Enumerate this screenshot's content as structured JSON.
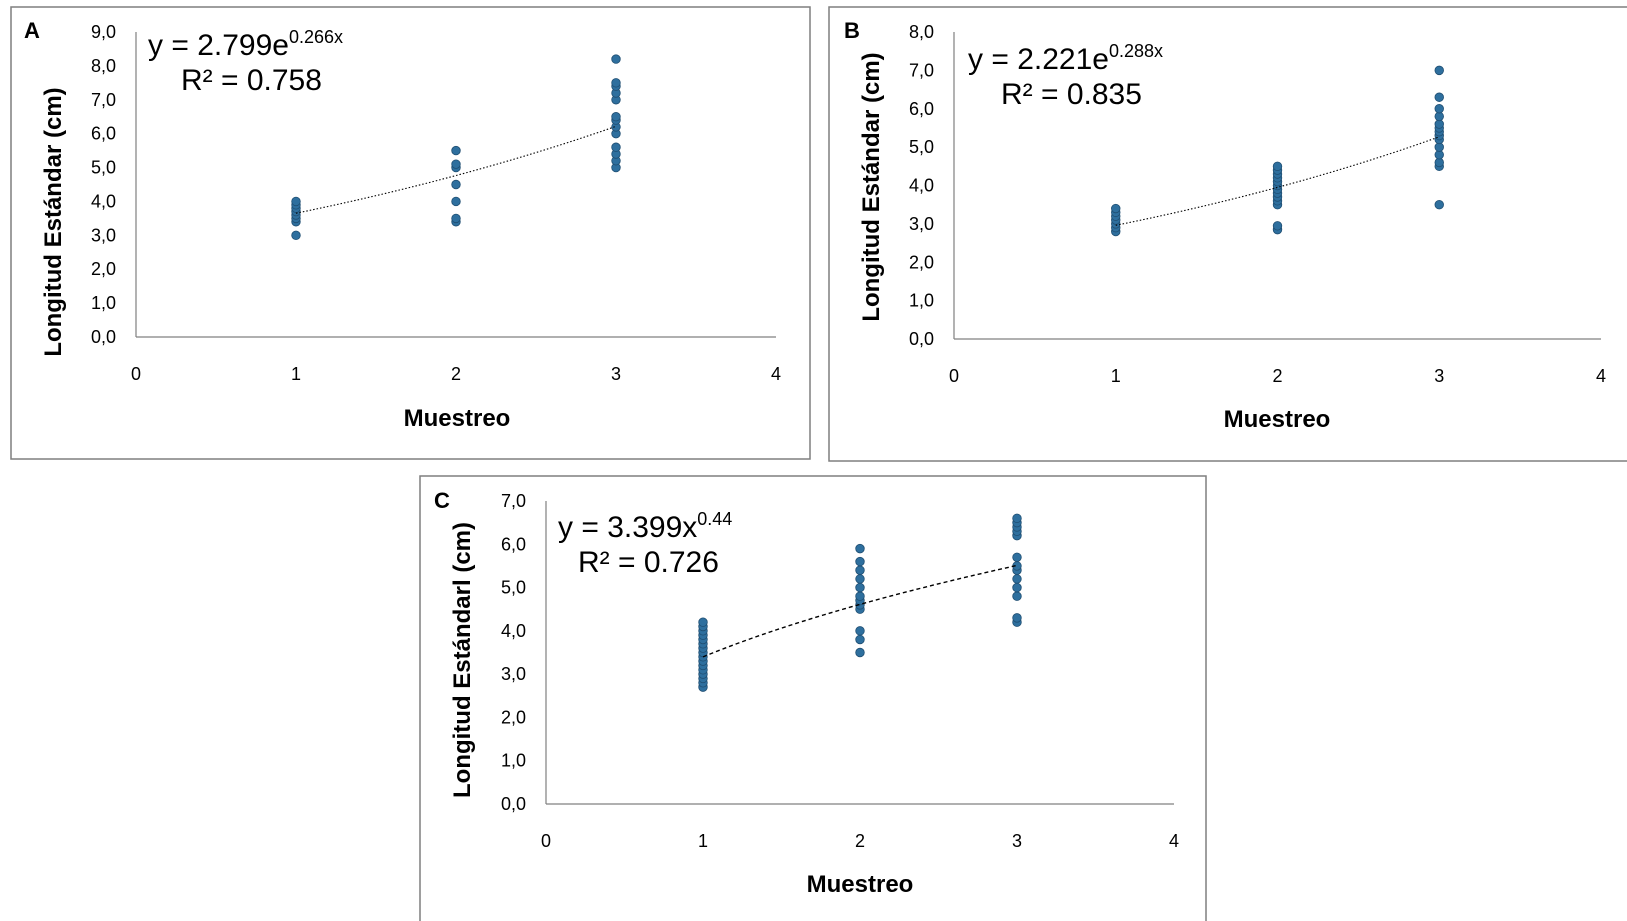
{
  "colors": {
    "marker": "#2e6f9e",
    "marker_edge": "#1f4e72",
    "trend": "#000000",
    "frame": "#7f7f7f",
    "axis": "#808080"
  },
  "chart_data": [
    {
      "type": "scatter",
      "panel": "A",
      "xlabel": "Muestreo",
      "ylabel": "Longitud Estándar (cm)",
      "xlim": [
        0,
        4
      ],
      "ylim": [
        0,
        9
      ],
      "x_ticks": [
        "0",
        "1",
        "2",
        "3",
        "4"
      ],
      "y_ticks": [
        "0,0",
        "1,0",
        "2,0",
        "3,0",
        "4,0",
        "5,0",
        "6,0",
        "7,0",
        "8,0",
        "9,0"
      ],
      "grid": false,
      "series": [
        {
          "points": [
            [
              1,
              3.0
            ],
            [
              1,
              3.4
            ],
            [
              1,
              3.5
            ],
            [
              1,
              3.6
            ],
            [
              1,
              3.7
            ],
            [
              1,
              3.8
            ],
            [
              1,
              3.9
            ],
            [
              1,
              4.0
            ],
            [
              2,
              3.4
            ],
            [
              2,
              3.5
            ],
            [
              2,
              4.0
            ],
            [
              2,
              4.5
            ],
            [
              2,
              5.0
            ],
            [
              2,
              5.1
            ],
            [
              2,
              5.5
            ],
            [
              3,
              5.0
            ],
            [
              3,
              5.2
            ],
            [
              3,
              5.4
            ],
            [
              3,
              5.6
            ],
            [
              3,
              6.0
            ],
            [
              3,
              6.2
            ],
            [
              3,
              6.4
            ],
            [
              3,
              6.5
            ],
            [
              3,
              7.0
            ],
            [
              3,
              7.2
            ],
            [
              3,
              7.4
            ],
            [
              3,
              7.5
            ],
            [
              3,
              8.2
            ]
          ]
        }
      ],
      "trendline": {
        "kind": "exponential",
        "a": 2.799,
        "b": 0.266,
        "x_range": [
          1,
          3
        ]
      },
      "equation": {
        "prefix": "y = 2.799e",
        "exponent": "0.266x",
        "r2": "R² = 0.758"
      }
    },
    {
      "type": "scatter",
      "panel": "B",
      "xlabel": "Muestreo",
      "ylabel": "Longitud Estándar (cm)",
      "xlim": [
        0,
        4
      ],
      "ylim": [
        0,
        8
      ],
      "x_ticks": [
        "0",
        "1",
        "2",
        "3",
        "4"
      ],
      "y_ticks": [
        "0,0",
        "1,0",
        "2,0",
        "3,0",
        "4,0",
        "5,0",
        "6,0",
        "7,0",
        "8,0"
      ],
      "grid": false,
      "series": [
        {
          "points": [
            [
              1,
              2.8
            ],
            [
              1,
              2.9
            ],
            [
              1,
              3.0
            ],
            [
              1,
              3.1
            ],
            [
              1,
              3.2
            ],
            [
              1,
              3.3
            ],
            [
              1,
              3.4
            ],
            [
              2,
              2.85
            ],
            [
              2,
              2.95
            ],
            [
              2,
              3.5
            ],
            [
              2,
              3.6
            ],
            [
              2,
              3.7
            ],
            [
              2,
              3.8
            ],
            [
              2,
              3.9
            ],
            [
              2,
              4.0
            ],
            [
              2,
              4.1
            ],
            [
              2,
              4.2
            ],
            [
              2,
              4.3
            ],
            [
              2,
              4.4
            ],
            [
              2,
              4.5
            ],
            [
              3,
              3.5
            ],
            [
              3,
              4.5
            ],
            [
              3,
              4.6
            ],
            [
              3,
              4.8
            ],
            [
              3,
              5.0
            ],
            [
              3,
              5.2
            ],
            [
              3,
              5.3
            ],
            [
              3,
              5.4
            ],
            [
              3,
              5.5
            ],
            [
              3,
              5.6
            ],
            [
              3,
              5.8
            ],
            [
              3,
              6.0
            ],
            [
              3,
              6.3
            ],
            [
              3,
              7.0
            ]
          ]
        }
      ],
      "trendline": {
        "kind": "exponential",
        "a": 2.221,
        "b": 0.288,
        "x_range": [
          1,
          3
        ]
      },
      "equation": {
        "prefix": "y = 2.221e",
        "exponent": "0.288x",
        "r2": "R² = 0.835"
      }
    },
    {
      "type": "scatter",
      "panel": "C",
      "xlabel": "Muestreo",
      "ylabel": "Longitud Estándarl (cm)",
      "xlim": [
        0,
        4
      ],
      "ylim": [
        0,
        7
      ],
      "x_ticks": [
        "0",
        "1",
        "2",
        "3",
        "4"
      ],
      "y_ticks": [
        "0,0",
        "1,0",
        "2,0",
        "3,0",
        "4,0",
        "5,0",
        "6,0",
        "7,0"
      ],
      "grid": false,
      "series": [
        {
          "points": [
            [
              1,
              2.7
            ],
            [
              1,
              2.8
            ],
            [
              1,
              2.9
            ],
            [
              1,
              3.0
            ],
            [
              1,
              3.1
            ],
            [
              1,
              3.2
            ],
            [
              1,
              3.3
            ],
            [
              1,
              3.4
            ],
            [
              1,
              3.5
            ],
            [
              1,
              3.6
            ],
            [
              1,
              3.7
            ],
            [
              1,
              3.8
            ],
            [
              1,
              3.9
            ],
            [
              1,
              4.0
            ],
            [
              1,
              4.1
            ],
            [
              1,
              4.2
            ],
            [
              2,
              3.5
            ],
            [
              2,
              3.8
            ],
            [
              2,
              4.0
            ],
            [
              2,
              4.5
            ],
            [
              2,
              4.6
            ],
            [
              2,
              4.7
            ],
            [
              2,
              4.8
            ],
            [
              2,
              5.0
            ],
            [
              2,
              5.2
            ],
            [
              2,
              5.4
            ],
            [
              2,
              5.6
            ],
            [
              2,
              5.9
            ],
            [
              3,
              4.2
            ],
            [
              3,
              4.3
            ],
            [
              3,
              4.8
            ],
            [
              3,
              5.0
            ],
            [
              3,
              5.2
            ],
            [
              3,
              5.4
            ],
            [
              3,
              5.5
            ],
            [
              3,
              5.7
            ],
            [
              3,
              6.2
            ],
            [
              3,
              6.3
            ],
            [
              3,
              6.4
            ],
            [
              3,
              6.5
            ],
            [
              3,
              6.6
            ]
          ]
        }
      ],
      "trendline": {
        "kind": "power",
        "a": 3.399,
        "b": 0.44,
        "x_range": [
          1,
          3
        ]
      },
      "equation": {
        "prefix": "y = 3.399x",
        "exponent": "0.44",
        "r2": "R² = 0.726"
      }
    }
  ]
}
